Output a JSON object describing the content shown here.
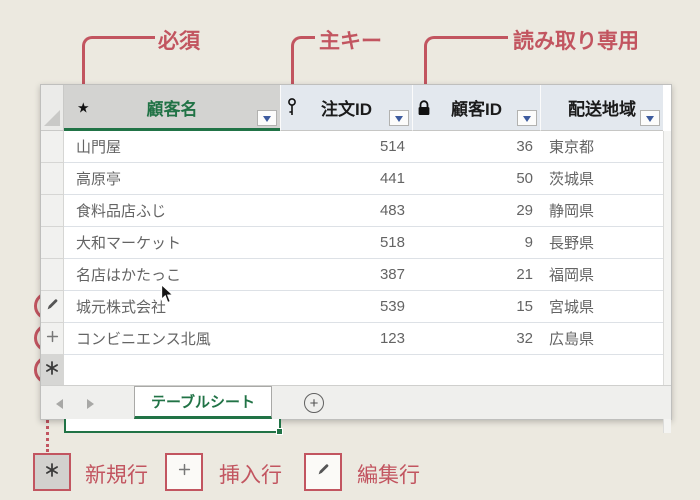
{
  "annotations": {
    "required_label": "必須",
    "primary_key_label": "主キー",
    "readonly_label": "読み取り専用"
  },
  "table": {
    "columns": [
      {
        "label": "顧客名",
        "icon": "star-required-icon",
        "selected": true
      },
      {
        "label": "注文ID",
        "icon": "key-primary-icon",
        "selected": false
      },
      {
        "label": "顧客ID",
        "icon": "lock-readonly-icon",
        "selected": false
      },
      {
        "label": "配送地域",
        "icon": null,
        "selected": false
      }
    ],
    "rows": [
      {
        "customer": "山門屋",
        "order_id": "514",
        "customer_id": "36",
        "region": "東京都",
        "marker": null
      },
      {
        "customer": "高原亭",
        "order_id": "441",
        "customer_id": "50",
        "region": "茨城県",
        "marker": null
      },
      {
        "customer": "食料品店ふじ",
        "order_id": "483",
        "customer_id": "29",
        "region": "静岡県",
        "marker": null
      },
      {
        "customer": "大和マーケット",
        "order_id": "518",
        "customer_id": "9",
        "region": "長野県",
        "marker": null
      },
      {
        "customer": "名店はかたっこ",
        "order_id": "387",
        "customer_id": "21",
        "region": "福岡県",
        "marker": null
      },
      {
        "customer": "城元株式会社",
        "order_id": "539",
        "customer_id": "15",
        "region": "宮城県",
        "marker": "edit"
      },
      {
        "customer": "コンビニエンス北風",
        "order_id": "123",
        "customer_id": "32",
        "region": "広島県",
        "marker": "insert"
      }
    ],
    "new_row": {
      "marker": "new",
      "selected_column": "顧客名"
    }
  },
  "sheet_bar": {
    "tab_label": "テーブルシート",
    "prev_icon": "chevron-left-icon",
    "next_icon": "chevron-right-icon",
    "add_icon": "circle-plus-icon"
  },
  "legend": [
    {
      "icon": "asterisk-new-row-icon",
      "label": "新規行"
    },
    {
      "icon": "plus-insert-row-icon",
      "label": "挿入行"
    },
    {
      "icon": "pencil-edit-row-icon",
      "label": "編集行"
    }
  ],
  "colors": {
    "annotation_rose": "#c25560",
    "accent_green": "#217346",
    "header_blue": "#e3e8ee",
    "header_selected_gray": "#d3d3d1",
    "dropdown_navy": "#3d5b9e",
    "page_background": "#ece9e0"
  }
}
